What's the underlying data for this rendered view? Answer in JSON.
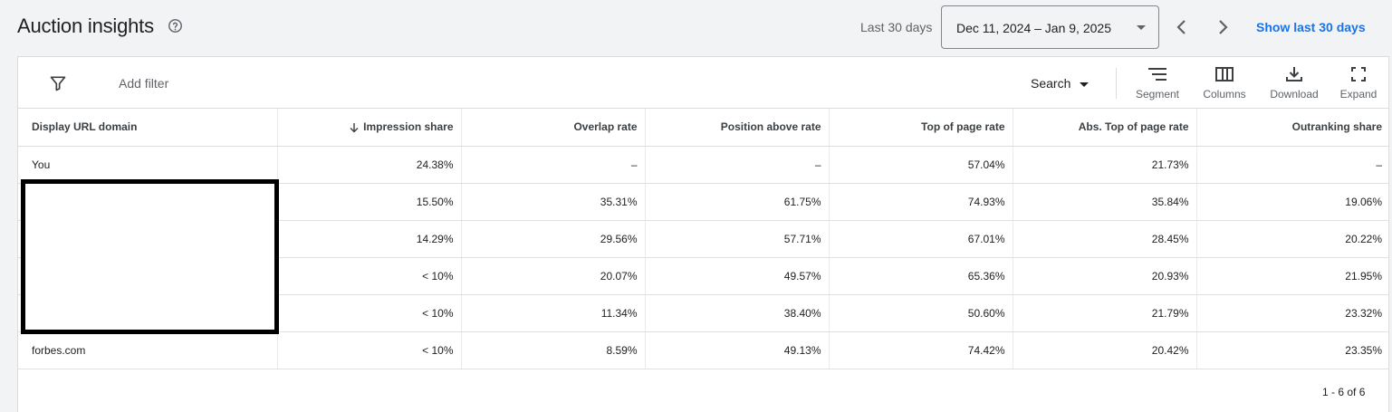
{
  "header": {
    "title": "Auction insights",
    "help_icon": "help-circle-icon",
    "period_label": "Last 30 days",
    "date_range": "Dec 11, 2024 – Jan 9, 2025",
    "prev_icon": "chevron-left-icon",
    "next_icon": "chevron-right-icon",
    "show_last_label": "Show last 30 days"
  },
  "toolbar": {
    "filter_icon": "filter-icon",
    "add_filter_label": "Add filter",
    "search_label": "Search",
    "segment_label": "Segment",
    "columns_label": "Columns",
    "download_label": "Download",
    "expand_label": "Expand"
  },
  "table": {
    "columns": [
      "Display URL domain",
      "Impression share",
      "Overlap rate",
      "Position above rate",
      "Top of page rate",
      "Abs. Top of page rate",
      "Outranking share"
    ],
    "sort_icon": "arrow-down-icon",
    "rows": [
      [
        "You",
        "24.38%",
        "–",
        "–",
        "57.04%",
        "21.73%",
        "–"
      ],
      [
        "",
        "15.50%",
        "35.31%",
        "61.75%",
        "74.93%",
        "35.84%",
        "19.06%"
      ],
      [
        "",
        "14.29%",
        "29.56%",
        "57.71%",
        "67.01%",
        "28.45%",
        "20.22%"
      ],
      [
        "",
        "< 10%",
        "20.07%",
        "49.57%",
        "65.36%",
        "20.93%",
        "21.95%"
      ],
      [
        "",
        "< 10%",
        "11.34%",
        "38.40%",
        "50.60%",
        "21.79%",
        "23.32%"
      ],
      [
        "forbes.com",
        "< 10%",
        "8.59%",
        "49.13%",
        "74.42%",
        "20.42%",
        "23.35%"
      ]
    ]
  },
  "pagination": "1 - 6 of 6",
  "colors": {
    "accent": "#1a73e8",
    "background": "#f1f3f4",
    "card": "#ffffff",
    "border": "#dadce0"
  }
}
